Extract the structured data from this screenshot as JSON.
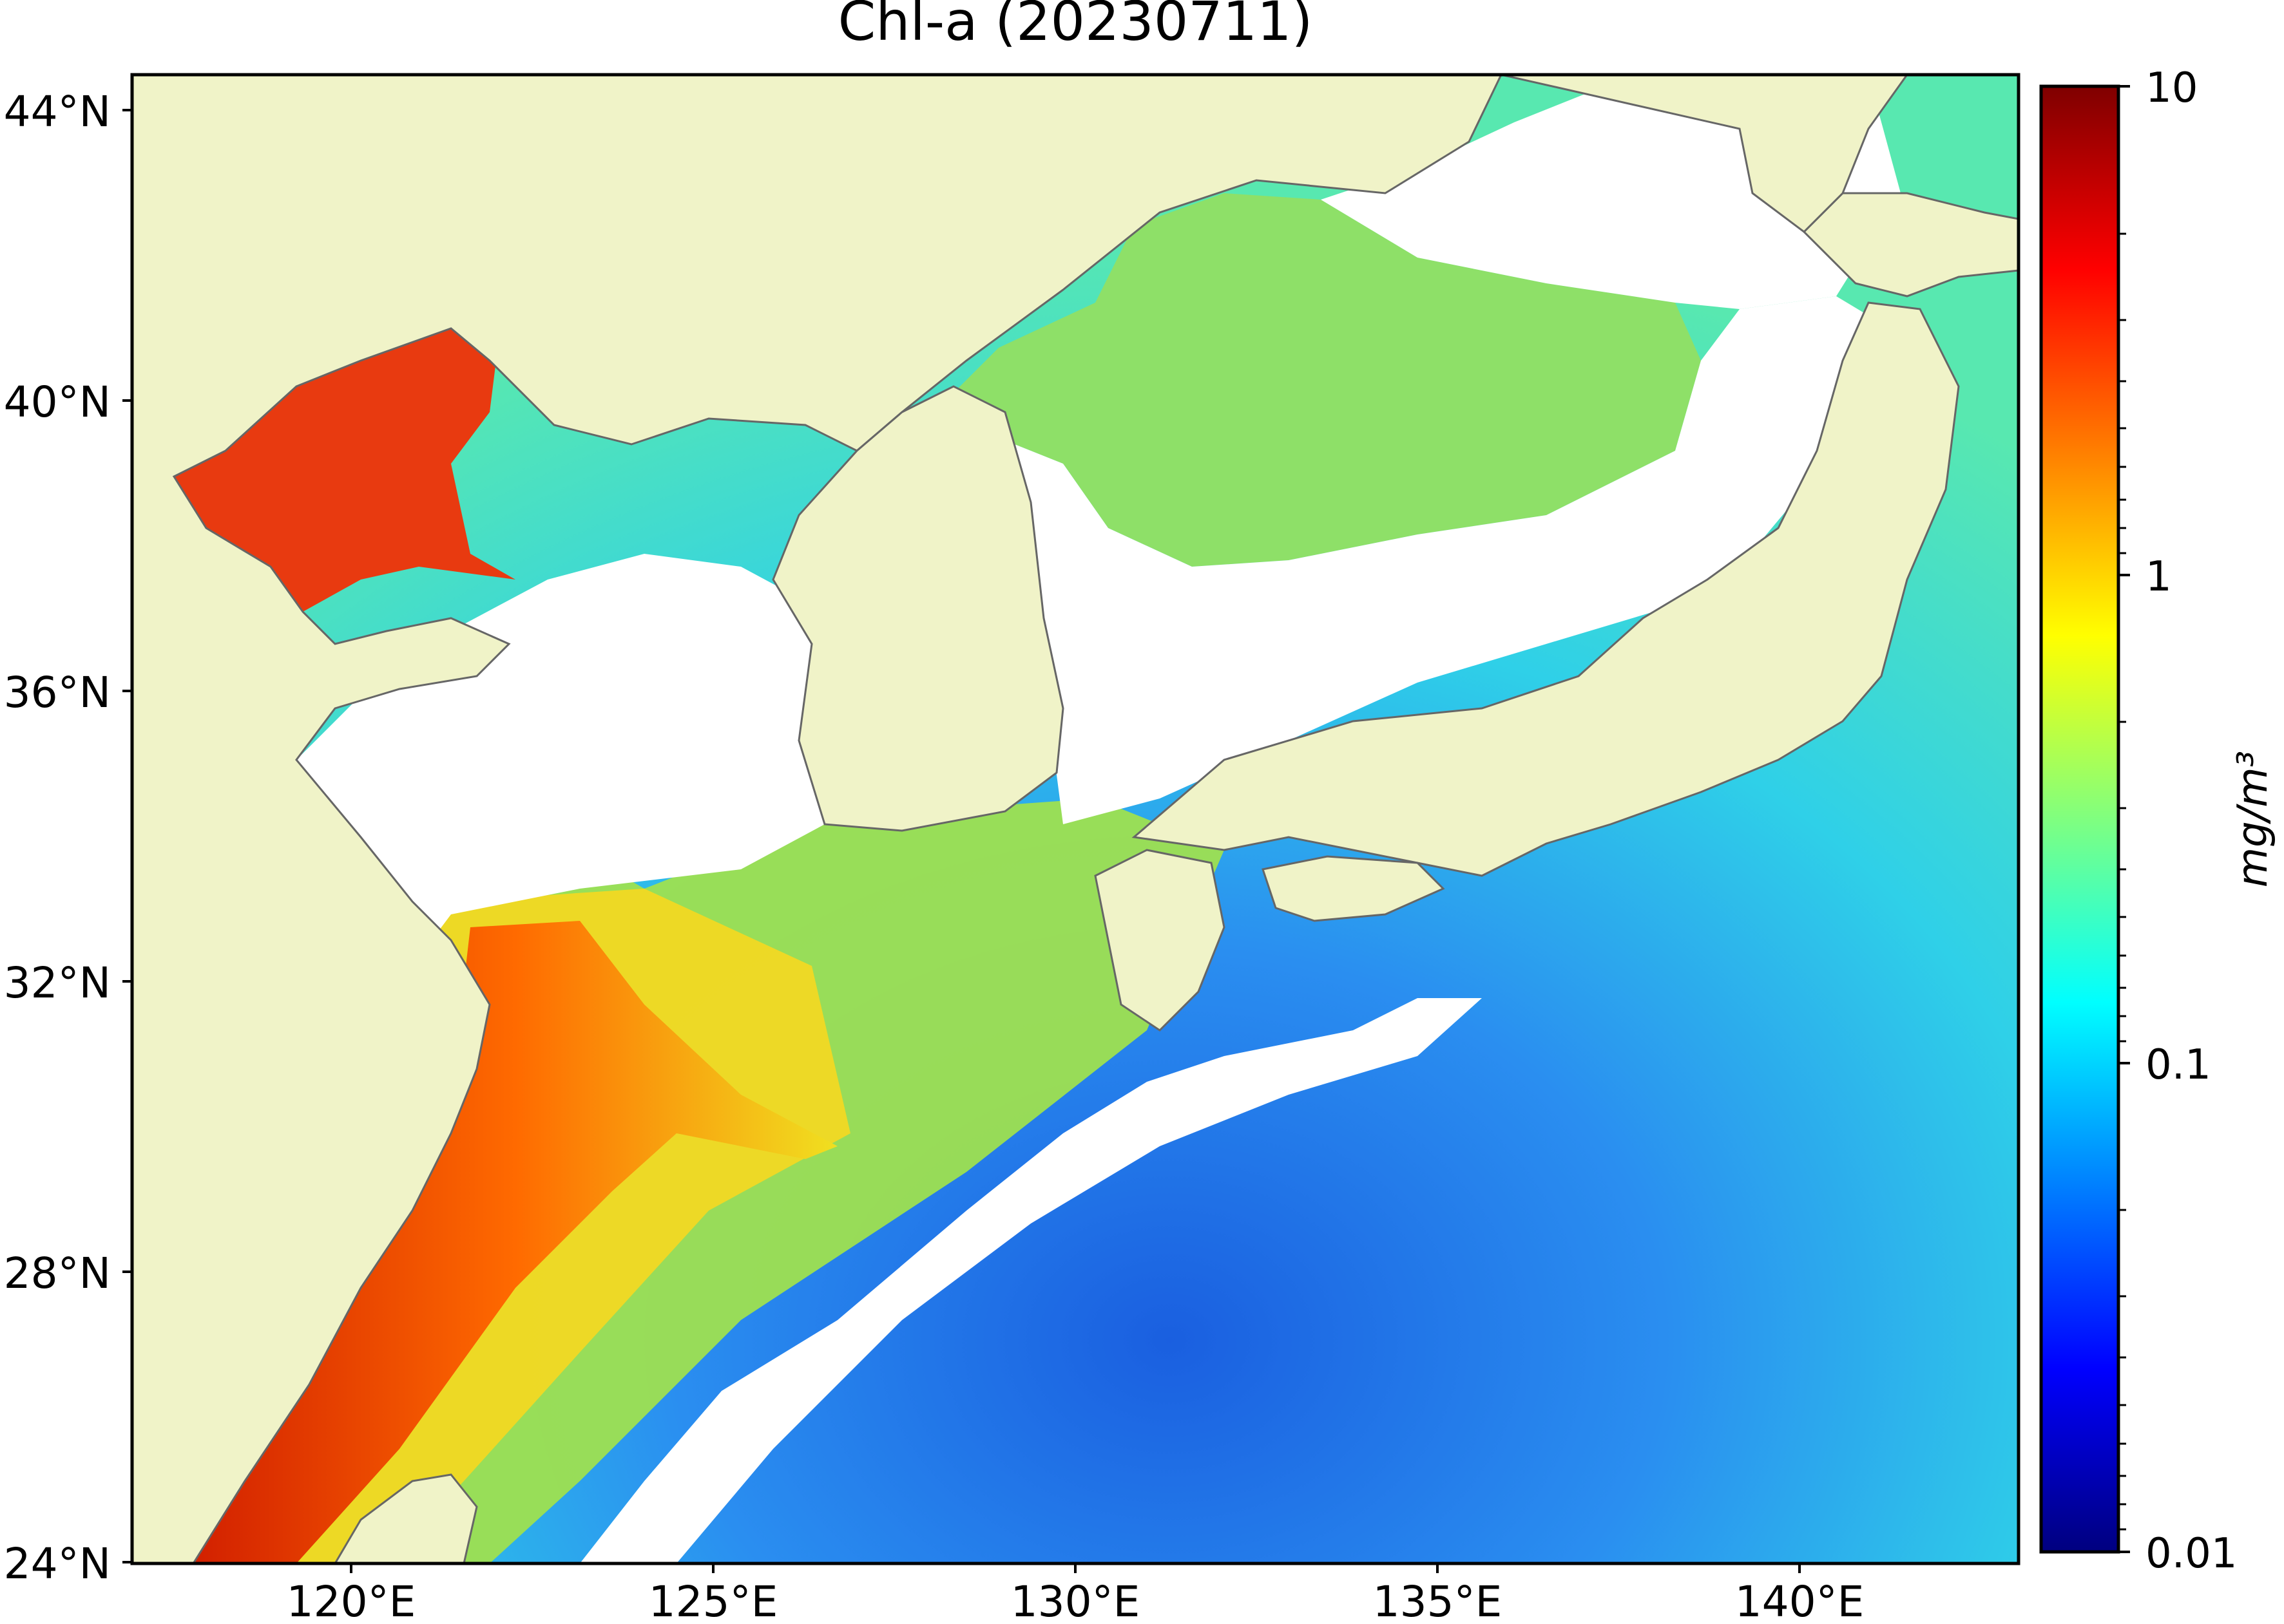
{
  "map": {
    "title": "Chl-a (20230711)",
    "lat_labels": [
      "44°N",
      "40°N",
      "36°N",
      "32°N",
      "28°N",
      "24°N"
    ],
    "lat_values": [
      44,
      40,
      36,
      32,
      28,
      24
    ],
    "lon_labels": [
      "120°E",
      "125°E",
      "130°E",
      "135°E",
      "140°E"
    ],
    "lon_values": [
      120,
      125,
      130,
      135,
      140
    ],
    "extent": {
      "lon_min": 116.5,
      "lon_max": 143.0,
      "lat_min": 24.0,
      "lat_max": 44.5
    },
    "colors": {
      "land": "#f0f3c8",
      "no_data": "#ffffff",
      "coastline": "#666666",
      "frame": "#000000"
    }
  },
  "colorbar": {
    "label": "mg/m³",
    "tick_labels": [
      "10",
      "1",
      "0.1",
      "0.01"
    ],
    "scale": "log",
    "range": [
      0.01,
      10
    ],
    "colormap": "jet"
  }
}
